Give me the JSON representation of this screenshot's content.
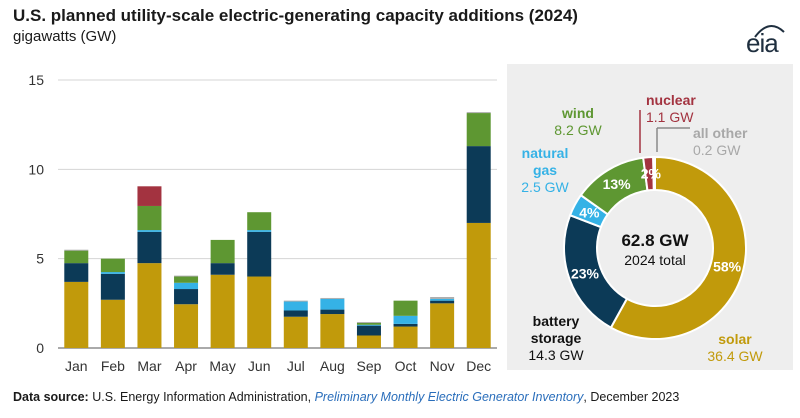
{
  "title": "U.S. planned utility-scale electric-generating capacity additions (2024)",
  "subtitle": "gigawatts (GW)",
  "logo": "eia",
  "source": {
    "label": "Data source:",
    "text": "U.S. Energy Information Administration,",
    "publication": "Preliminary Monthly Electric Generator Inventory",
    "date": ", December 2023"
  },
  "colors": {
    "solar": "#c19a0b",
    "battery storage": "#0c3a57",
    "natural gas": "#35b2e6",
    "wind": "#5e9732",
    "nuclear": "#a33340",
    "all other": "#a8a8a8"
  },
  "chart_data": [
    {
      "type": "bar",
      "stacked": true,
      "categories": [
        "Jan",
        "Feb",
        "Mar",
        "Apr",
        "May",
        "Jun",
        "Jul",
        "Aug",
        "Sep",
        "Oct",
        "Nov",
        "Dec"
      ],
      "series": [
        {
          "name": "solar",
          "values": [
            3.7,
            2.7,
            4.75,
            2.45,
            4.1,
            4.0,
            1.75,
            1.9,
            0.7,
            1.2,
            2.5,
            7.0
          ]
        },
        {
          "name": "battery storage",
          "values": [
            1.05,
            1.45,
            1.75,
            0.85,
            0.65,
            2.5,
            0.35,
            0.25,
            0.55,
            0.15,
            0.15,
            4.3
          ]
        },
        {
          "name": "natural gas",
          "values": [
            0.0,
            0.1,
            0.1,
            0.35,
            0.0,
            0.1,
            0.5,
            0.6,
            0.05,
            0.45,
            0.1,
            0.0
          ]
        },
        {
          "name": "wind",
          "values": [
            0.7,
            0.75,
            1.35,
            0.35,
            1.3,
            1.0,
            0.0,
            0.0,
            0.1,
            0.85,
            0.0,
            1.85
          ]
        },
        {
          "name": "nuclear",
          "values": [
            0,
            0,
            1.1,
            0,
            0,
            0,
            0,
            0,
            0,
            0,
            0,
            0
          ]
        },
        {
          "name": "all other",
          "values": [
            0.05,
            0,
            0,
            0.05,
            0,
            0,
            0.05,
            0.05,
            0.05,
            0,
            0.1,
            0.05
          ]
        }
      ],
      "xlabel": "",
      "ylabel": "gigawatts (GW)",
      "ylim": [
        0,
        15
      ],
      "yticks": [
        "0",
        "5",
        "10",
        "15"
      ],
      "grid": true
    },
    {
      "type": "pie",
      "donut": true,
      "center_value": "62.8 GW",
      "center_label": "2024 total",
      "slices": [
        {
          "name": "solar",
          "value": 36.4,
          "value_label": "36.4 GW",
          "percent_label": "58%"
        },
        {
          "name": "battery storage",
          "value": 14.3,
          "value_label": "14.3 GW",
          "percent_label": "23%"
        },
        {
          "name": "natural gas",
          "value": 2.5,
          "value_label": "2.5 GW",
          "percent_label": "4%"
        },
        {
          "name": "wind",
          "value": 8.2,
          "value_label": "8.2 GW",
          "percent_label": "13%"
        },
        {
          "name": "nuclear",
          "value": 1.1,
          "value_label": "1.1 GW",
          "percent_label": "2%"
        },
        {
          "name": "all other",
          "value": 0.2,
          "value_label": "0.2 GW",
          "percent_label": ""
        }
      ],
      "labels": {
        "solar": [
          "solar"
        ],
        "battery storage": [
          "battery",
          "storage"
        ],
        "natural gas": [
          "natural",
          "gas"
        ],
        "wind": [
          "wind"
        ],
        "nuclear": [
          "nuclear"
        ],
        "all other": [
          "all other"
        ]
      }
    }
  ]
}
